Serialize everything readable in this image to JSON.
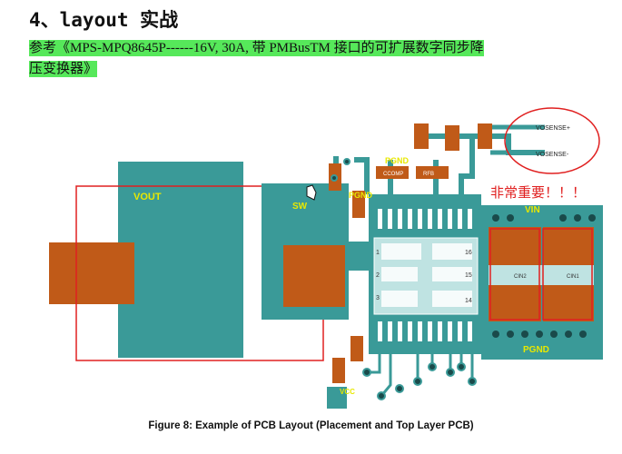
{
  "heading": "4、layout 实战",
  "reference_line1": "参考《MPS-MPQ8645P------16V, 30A,  带 PMBusTM 接口的可扩展数字同步降",
  "reference_line2": "压变换器》",
  "caption": "Figure 8: Example of PCB Layout (Placement and Top Layer PCB)",
  "pcb": {
    "net_vout": "VOUT",
    "net_sw": "SW",
    "net_vin": "VIN",
    "net_pgnd_top": "PGND",
    "net_pgnd_mid": "PGND",
    "net_pgnd_right": "PGND",
    "net_vcc": "VCC",
    "vsense_plus": "VOSENSE+",
    "vsense_minus": "VOSENSE-",
    "emphasis_note": "非常重要！！！",
    "comp_cout": "CCOMP",
    "comp_rfb": "RFB",
    "comp_cin1": "CIN2",
    "comp_cin2": "CIN1",
    "pin_1": "1",
    "pin_16": "16",
    "pin_15": "15",
    "pin_14": "14",
    "pin_2": "2",
    "pin_3": "3",
    "pin_4": "4",
    "pin_vin": "VIN",
    "pin_pgnd": "PGND"
  },
  "colors": {
    "board_teal": "#3a9a98",
    "pad_copper": "#c05a18",
    "outline_red": "#e02020",
    "label_yellow": "#e8e800",
    "highlight_green": "#56e85a"
  }
}
